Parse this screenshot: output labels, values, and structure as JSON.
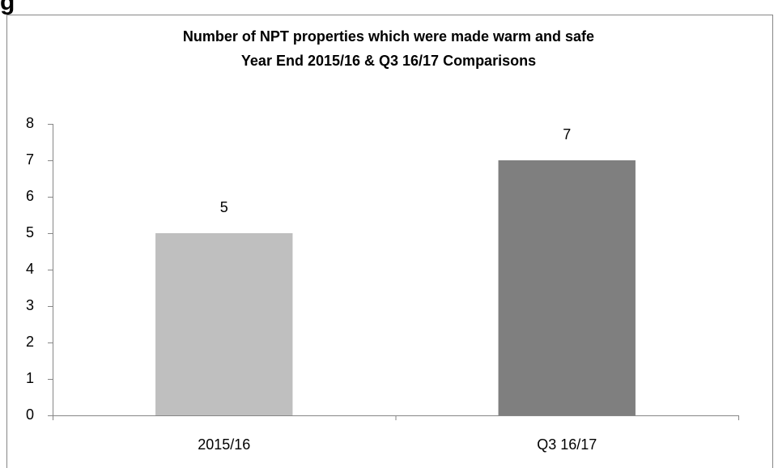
{
  "heading": "g",
  "chart_data": {
    "type": "bar",
    "title": "Number of NPT properties which were made warm and safe",
    "subtitle": "Year End 2015/16 & Q3 16/17 Comparisons",
    "categories": [
      "2015/16",
      "Q3 16/17"
    ],
    "values": [
      5,
      7
    ],
    "colors": [
      "#bfbfbf",
      "#7f7f7f"
    ],
    "ylim": [
      0,
      8
    ],
    "yticks": [
      0,
      1,
      2,
      3,
      4,
      5,
      6,
      7,
      8
    ],
    "grid": false
  }
}
